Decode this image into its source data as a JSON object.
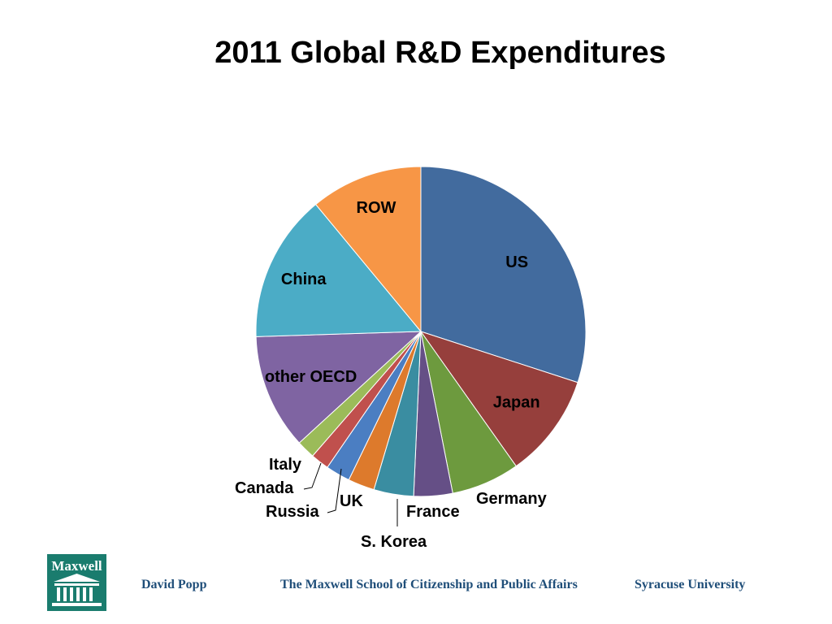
{
  "chart_data": {
    "type": "pie",
    "title": "2011 Global R&D Expenditures",
    "slices": [
      {
        "label": "US",
        "value": 30.0,
        "color": "#426b9e"
      },
      {
        "label": "Japan",
        "value": 10.2,
        "color": "#963f3c"
      },
      {
        "label": "Germany",
        "value": 6.7,
        "color": "#6d9a3e"
      },
      {
        "label": "France",
        "value": 3.8,
        "color": "#654f86"
      },
      {
        "label": "S. Korea",
        "value": 3.9,
        "color": "#3a8da1"
      },
      {
        "label": "UK",
        "value": 2.6,
        "color": "#dd7a2c"
      },
      {
        "label": "Russia",
        "value": 2.4,
        "color": "#4b7ec2"
      },
      {
        "label": "Canada",
        "value": 1.8,
        "color": "#c0504d"
      },
      {
        "label": "Italy",
        "value": 1.8,
        "color": "#9bbb59"
      },
      {
        "label": "other OECD",
        "value": 11.3,
        "color": "#7f64a2"
      },
      {
        "label": "China",
        "value": 14.5,
        "color": "#4bacc6"
      },
      {
        "label": "ROW",
        "value": 11.0,
        "color": "#f79646"
      }
    ]
  },
  "footer": {
    "logo_text": "Maxwell",
    "author": "David Popp",
    "school": "The Maxwell School of Citizenship and Public Affairs",
    "university": "Syracuse University"
  }
}
